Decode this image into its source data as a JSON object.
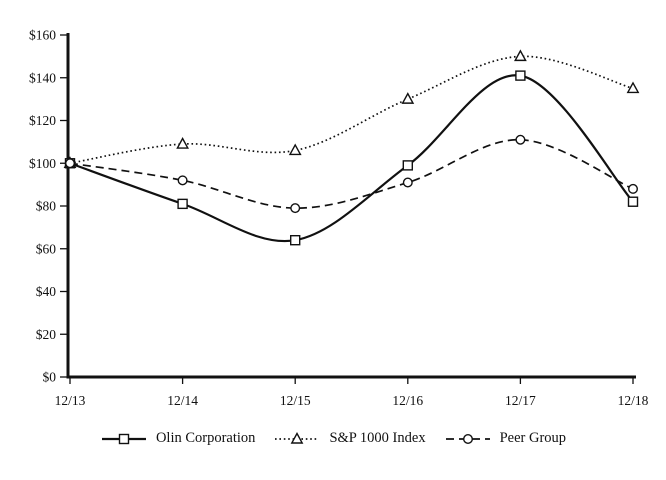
{
  "chart_data": {
    "type": "line",
    "title": "",
    "categories": [
      "12/13",
      "12/14",
      "12/15",
      "12/16",
      "12/17",
      "12/18"
    ],
    "series": [
      {
        "name": "Olin Corporation",
        "marker": "square",
        "line": "solid",
        "values": [
          100,
          81,
          64,
          99,
          141,
          82
        ]
      },
      {
        "name": "S&P 1000 Index",
        "marker": "triangle",
        "line": "dotted",
        "values": [
          100,
          109,
          106,
          130,
          150,
          135
        ]
      },
      {
        "name": "Peer Group",
        "marker": "circle",
        "line": "dashed",
        "values": [
          100,
          92,
          79,
          91,
          111,
          88
        ]
      }
    ],
    "y_axis": {
      "min": 0,
      "max": 160,
      "step": 20,
      "prefix": "$",
      "tick_labels": [
        "$0",
        "$20",
        "$40",
        "$60",
        "$80",
        "$100",
        "$120",
        "$140",
        "$160"
      ]
    },
    "xlabel": "",
    "ylabel": "",
    "grid": false,
    "legend_position": "bottom",
    "colors": {
      "line": "#111111",
      "marker_fill": "#ffffff",
      "background": "#ffffff"
    }
  }
}
